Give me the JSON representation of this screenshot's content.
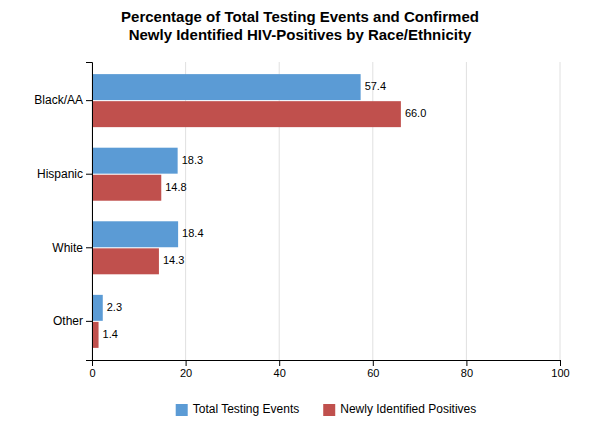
{
  "chart_data": {
    "type": "bar",
    "orientation": "horizontal",
    "title": "Percentage of Total Testing Events and Confirmed\nNewly Identified HIV-Positives by Race/Ethnicity",
    "categories": [
      "Black/AA",
      "Hispanic",
      "White",
      "Other"
    ],
    "series": [
      {
        "name": "Total Testing Events",
        "color": "#5B9BD5",
        "values": [
          57.4,
          18.3,
          18.4,
          2.3
        ]
      },
      {
        "name": "Newly Identified Positives",
        "color": "#C0504D",
        "values": [
          66.0,
          14.8,
          14.3,
          1.4
        ],
        "value_labels": [
          "66.0",
          "14.8",
          "14.3",
          "1.4"
        ]
      }
    ],
    "xlim": [
      0,
      100
    ],
    "xticks": [
      0,
      20,
      40,
      60,
      80,
      100
    ],
    "grid": true,
    "data_labels": true,
    "legend": "bottom"
  }
}
